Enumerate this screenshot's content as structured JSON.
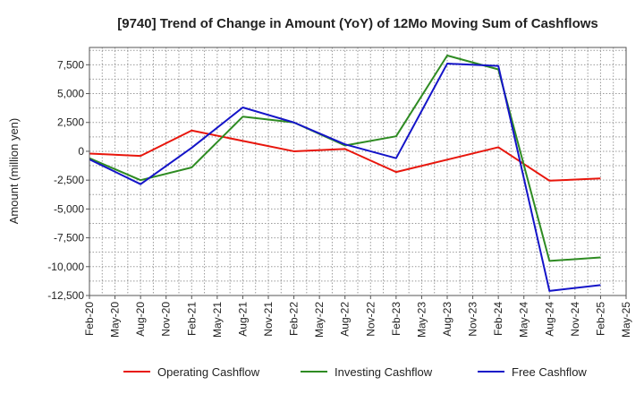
{
  "chart_data": {
    "type": "line",
    "title": "[9740]  Trend of Change in Amount (YoY) of 12Mo Moving Sum of Cashflows",
    "xlabel": "",
    "ylabel": "Amount (million yen)",
    "ylim": [
      -12500,
      9000
    ],
    "yticks": [
      7500,
      5000,
      2500,
      0,
      -2500,
      -5000,
      -7500,
      -10000,
      -12500
    ],
    "ytick_labels": [
      "7,500",
      "5,000",
      "2,500",
      "0",
      "-2,500",
      "-5,000",
      "-7,500",
      "-10,000",
      "-12,500"
    ],
    "categories": [
      "Feb-20",
      "May-20",
      "Aug-20",
      "Nov-20",
      "Feb-21",
      "May-21",
      "Aug-21",
      "Nov-21",
      "Feb-22",
      "May-22",
      "Aug-22",
      "Nov-22",
      "Feb-23",
      "May-23",
      "Aug-23",
      "Nov-23",
      "Feb-24",
      "May-24",
      "Aug-24",
      "Nov-24",
      "Feb-25",
      "May-25"
    ],
    "grid": true,
    "legend_position": "bottom",
    "series": [
      {
        "name": "Operating Cashflow",
        "color": "#e8160c",
        "points": [
          [
            "Feb-20",
            -200
          ],
          [
            "Aug-20",
            -400
          ],
          [
            "Feb-21",
            1800
          ],
          [
            "Feb-22",
            0
          ],
          [
            "Aug-22",
            200
          ],
          [
            "Feb-23",
            -1800
          ],
          [
            "Feb-24",
            350
          ],
          [
            "Aug-24",
            -2550
          ],
          [
            "Feb-25",
            -2350
          ]
        ]
      },
      {
        "name": "Investing Cashflow",
        "color": "#2e8b22",
        "points": [
          [
            "Feb-20",
            -600
          ],
          [
            "Aug-20",
            -2500
          ],
          [
            "Feb-21",
            -1400
          ],
          [
            "Aug-21",
            3000
          ],
          [
            "Feb-22",
            2500
          ],
          [
            "Aug-22",
            500
          ],
          [
            "Feb-23",
            1300
          ],
          [
            "Aug-23",
            8300
          ],
          [
            "Feb-24",
            7100
          ],
          [
            "Aug-24",
            -9500
          ],
          [
            "Feb-25",
            -9200
          ]
        ]
      },
      {
        "name": "Free Cashflow",
        "color": "#1414c8",
        "points": [
          [
            "Feb-20",
            -700
          ],
          [
            "Aug-20",
            -2850
          ],
          [
            "Feb-21",
            300
          ],
          [
            "Aug-21",
            3800
          ],
          [
            "Feb-22",
            2500
          ],
          [
            "Aug-22",
            600
          ],
          [
            "Feb-23",
            -600
          ],
          [
            "Aug-23",
            7600
          ],
          [
            "Feb-24",
            7400
          ],
          [
            "Aug-24",
            -12100
          ],
          [
            "Feb-25",
            -11600
          ]
        ]
      }
    ]
  }
}
